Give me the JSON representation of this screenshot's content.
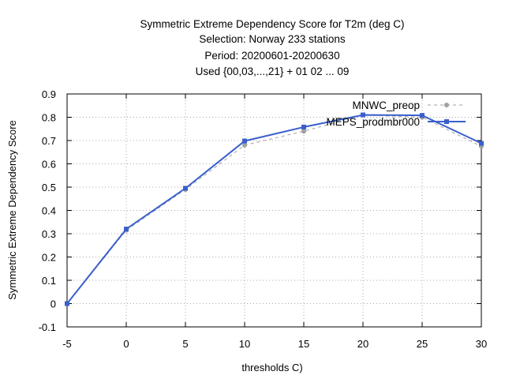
{
  "chart_data": {
    "type": "line",
    "title_lines": [
      "Symmetric Extreme Dependency Score  for T2m (deg C)",
      "Selection: Norway    233 stations",
      "Period: 20200601-20200630",
      "Used {00,03,...,21} + 01 02 ... 09"
    ],
    "xlabel": "thresholds C)",
    "ylabel": "Symmetric Extreme Dependency Score",
    "xlim": [
      -5,
      30
    ],
    "ylim": [
      -0.1,
      0.9
    ],
    "xticks": [
      "-5",
      "0",
      "5",
      "10",
      "15",
      "20",
      "25",
      "30"
    ],
    "yticks": [
      "-0.1",
      "0",
      "0.1",
      "0.2",
      "0.3",
      "0.4",
      "0.5",
      "0.6",
      "0.7",
      "0.8",
      "0.9"
    ],
    "x": [
      -5,
      0,
      5,
      10,
      15,
      20,
      25,
      30
    ],
    "grid": true,
    "legend_position": "top-right",
    "series": [
      {
        "name": "MNWC_preop",
        "color": "#a0a0a0",
        "dash": true,
        "marker": "circle",
        "values": [
          0.0,
          0.315,
          0.49,
          0.68,
          0.74,
          0.81,
          0.8,
          0.675
        ]
      },
      {
        "name": "MEPS_prodmbr000",
        "color": "#3a5fcd",
        "dash": false,
        "marker": "square",
        "values": [
          0.0,
          0.32,
          0.495,
          0.698,
          0.758,
          0.81,
          0.808,
          0.688
        ]
      }
    ]
  }
}
